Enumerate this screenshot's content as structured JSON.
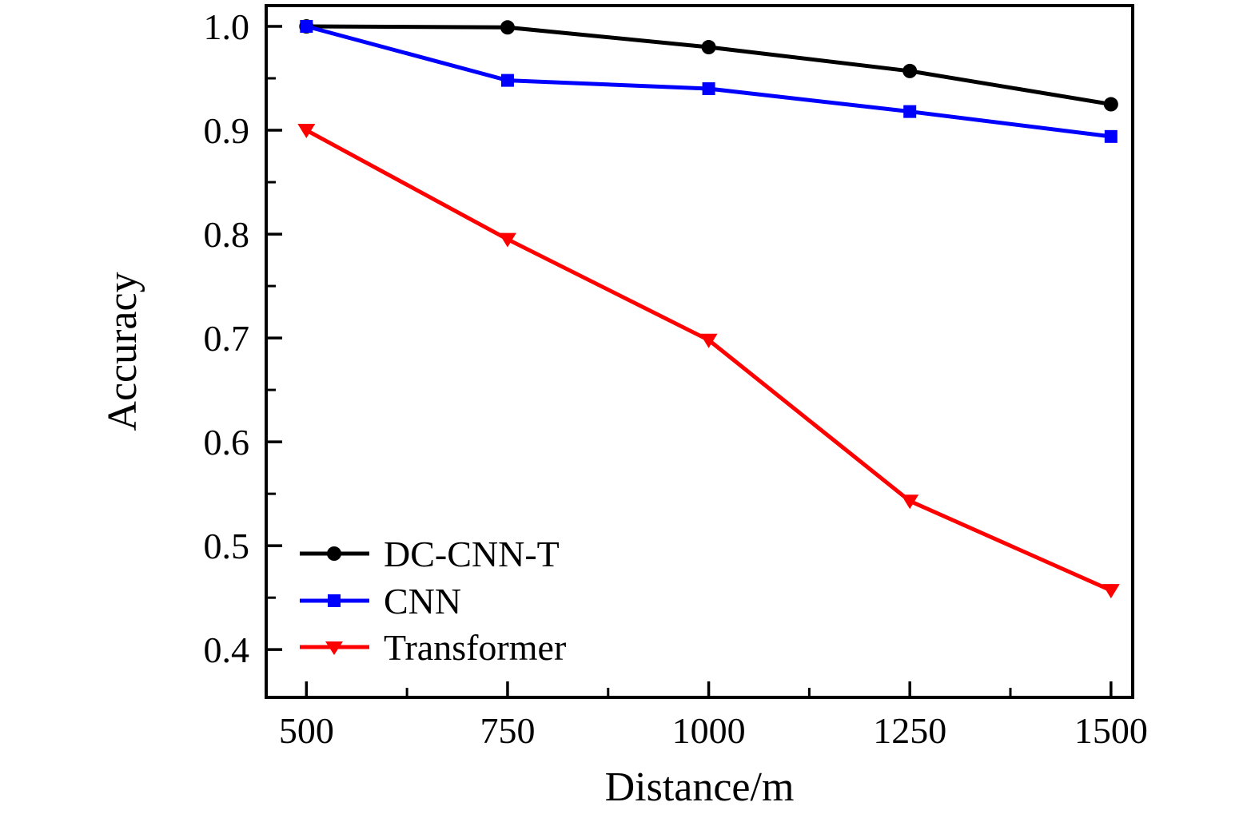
{
  "figure": {
    "background_color": "#ffffff",
    "axis_color": "#000000",
    "text_color": "#000000"
  },
  "chart_data": {
    "type": "line",
    "title": "",
    "xlabel": "Distance/m",
    "ylabel": "Accuracy",
    "x": [
      500,
      750,
      1000,
      1250,
      1500
    ],
    "series": [
      {
        "name": "DC-CNN-T",
        "color": "#000000",
        "marker": "circle",
        "values": [
          1.0,
          0.999,
          0.98,
          0.957,
          0.925
        ]
      },
      {
        "name": "CNN",
        "color": "#0000ff",
        "marker": "square",
        "values": [
          1.0,
          0.948,
          0.94,
          0.918,
          0.894
        ]
      },
      {
        "name": "Transformer",
        "color": "#ff0000",
        "marker": "triangle-down",
        "values": [
          0.9,
          0.795,
          0.698,
          0.543,
          0.457
        ]
      }
    ],
    "xlim": [
      450,
      1527
    ],
    "ylim": [
      0.354,
      1.02
    ],
    "x_major_ticks": [
      500,
      750,
      1000,
      1250,
      1500
    ],
    "x_minor_ticks": [
      625,
      875,
      1125,
      1375
    ],
    "y_major_ticks": [
      0.4,
      0.5,
      0.6,
      0.7,
      0.8,
      0.9,
      1.0
    ],
    "y_minor_ticks": [
      0.45,
      0.55,
      0.65,
      0.75,
      0.85,
      0.95
    ],
    "y_tick_decimals": 1,
    "grid": false,
    "legend_position": "lower-left"
  }
}
